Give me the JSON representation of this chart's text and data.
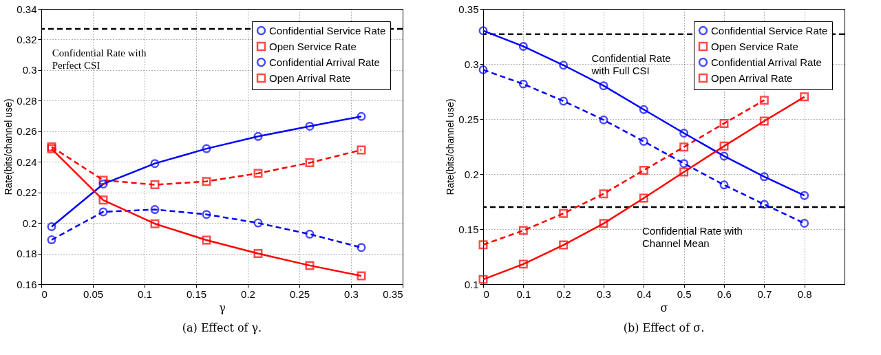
{
  "chart_data": [
    {
      "type": "line",
      "xlabel": "γ",
      "ylabel": "Rate(bits/channel use)",
      "x": [
        0.01,
        0.06,
        0.11,
        0.16,
        0.21,
        0.26,
        0.31
      ],
      "xlim": [
        0,
        0.35
      ],
      "xticks": [
        0,
        0.05,
        0.1,
        0.15,
        0.2,
        0.25,
        0.3,
        0.35
      ],
      "ylim": [
        0.16,
        0.34
      ],
      "yticks": [
        0.16,
        0.18,
        0.2,
        0.22,
        0.24,
        0.26,
        0.28,
        0.3,
        0.32,
        0.34
      ],
      "grid": true,
      "legend": "top right",
      "series": [
        {
          "name": "Confidential Service Rate",
          "color": "#0000ff",
          "marker": "circle",
          "line_style": "dashed",
          "values": [
            0.189,
            0.2073,
            0.2088,
            0.2056,
            0.2,
            0.1927,
            0.184
          ]
        },
        {
          "name": "Open Service Rate",
          "color": "#ff0000",
          "marker": "square",
          "line_style": "dashed",
          "values": [
            0.2498,
            0.228,
            0.225,
            0.2272,
            0.2325,
            0.2394,
            0.2478
          ]
        },
        {
          "name": "Confidential Arrival Rate",
          "color": "#0000ff",
          "marker": "circle",
          "line_style": "solid",
          "values": [
            0.1976,
            0.2255,
            0.2389,
            0.2486,
            0.2566,
            0.2633,
            0.2697
          ]
        },
        {
          "name": "Open Arrival Rate",
          "color": "#ff0000",
          "marker": "square",
          "line_style": "solid",
          "values": [
            0.2485,
            0.215,
            0.1995,
            0.1888,
            0.18,
            0.1722,
            0.1654
          ]
        }
      ],
      "ref_lines": [
        {
          "axis": "y",
          "value": 0.327,
          "label": "Confidential Rate with\nPerfect CSI",
          "color": "#000000",
          "line_style": "dashed"
        }
      ],
      "annotations": [
        "(a) Effect of γ."
      ]
    },
    {
      "type": "line",
      "xlabel": "σ",
      "ylabel": "Rate(bits/channel use)",
      "x": [
        0,
        0.1,
        0.2,
        0.3,
        0.4,
        0.5,
        0.6,
        0.7,
        0.8
      ],
      "xlim": [
        0,
        0.9
      ],
      "xticks": [
        0,
        0.1,
        0.2,
        0.3,
        0.4,
        0.5,
        0.6,
        0.7,
        0.8
      ],
      "ylim": [
        0.1,
        0.35
      ],
      "yticks": [
        0.1,
        0.15,
        0.2,
        0.25,
        0.3,
        0.35
      ],
      "grid": true,
      "legend": "top right",
      "series": [
        {
          "name": "Confidential Service Rate",
          "color": "#0000ff",
          "marker": "circle",
          "line_style": "dashed",
          "values": [
            0.2947,
            0.2818,
            0.2663,
            0.2492,
            0.2297,
            0.2096,
            0.1901,
            0.1725,
            0.1553
          ]
        },
        {
          "name": "Open Service Rate",
          "color": "#ff0000",
          "marker": "square",
          "line_style": "dashed",
          "values": [
            0.1358,
            0.1487,
            0.1642,
            0.1821,
            0.2035,
            0.2246,
            0.246,
            0.2671,
            null
          ]
        },
        {
          "name": "Confidential Arrival Rate",
          "color": "#0000ff",
          "marker": "circle",
          "line_style": "solid",
          "values": [
            0.3302,
            0.316,
            0.2989,
            0.2802,
            0.2586,
            0.2372,
            0.2163,
            0.1976,
            0.1805
          ]
        },
        {
          "name": "Open Arrival Rate",
          "color": "#ff0000",
          "marker": "square",
          "line_style": "solid",
          "values": [
            0.1043,
            0.1182,
            0.1356,
            0.1551,
            0.1781,
            0.2019,
            0.2254,
            0.2481,
            0.2701
          ]
        }
      ],
      "ref_lines": [
        {
          "axis": "y",
          "value": 0.327,
          "label": "Confidential Rate\nwith Full CSI",
          "color": "#000000",
          "line_style": "dashed"
        },
        {
          "axis": "y",
          "value": 0.17,
          "label": "Confidential Rate with\nChannel Mean",
          "color": "#000000",
          "line_style": "dashed"
        }
      ],
      "annotations": [
        "(b) Effect of σ."
      ]
    }
  ]
}
